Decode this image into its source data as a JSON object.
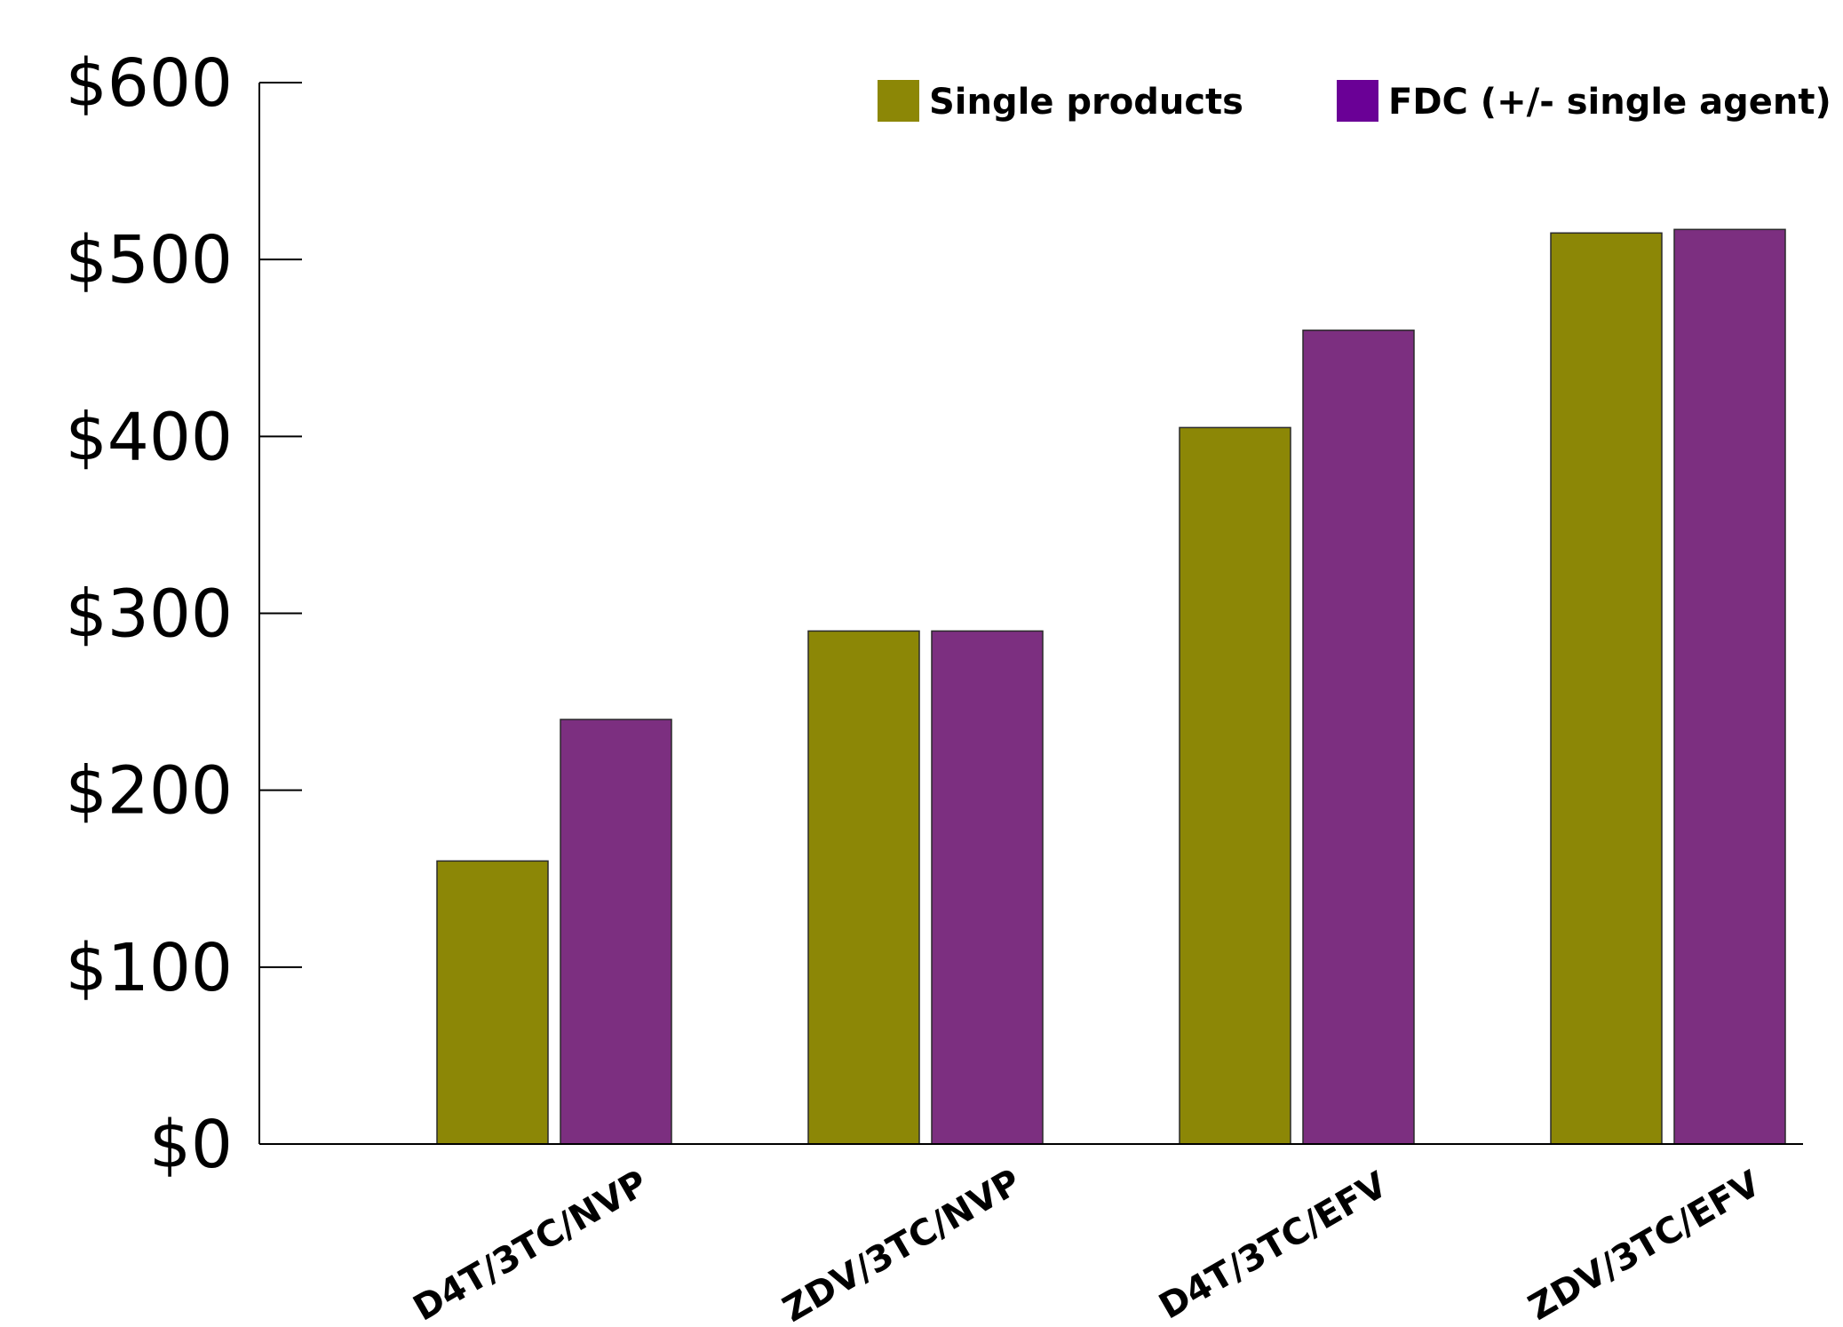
{
  "chart_data": {
    "type": "bar",
    "categories": [
      "D4T/3TC/NVP",
      "ZDV/3TC/NVP",
      "D4T/3TC/EFV",
      "ZDV/3TC/EFV"
    ],
    "series": [
      {
        "name": "Single products",
        "values": [
          160,
          290,
          405,
          515
        ],
        "color": "#8c8706"
      },
      {
        "name": "FDC (+/- single agent)",
        "values": [
          240,
          290,
          460,
          517
        ],
        "color": "#7c2f80"
      }
    ],
    "legend_colors": [
      "#8c8706",
      "#6a0096"
    ],
    "yticks": [
      0,
      100,
      200,
      300,
      400,
      500,
      600
    ],
    "ytick_labels": [
      "$0",
      "$100",
      "$200",
      "$300",
      "$400",
      "$500",
      "$600"
    ],
    "ylim": [
      0,
      600
    ],
    "title": "",
    "xlabel": "",
    "ylabel": "",
    "grid": false,
    "legend_position": "top-right"
  }
}
